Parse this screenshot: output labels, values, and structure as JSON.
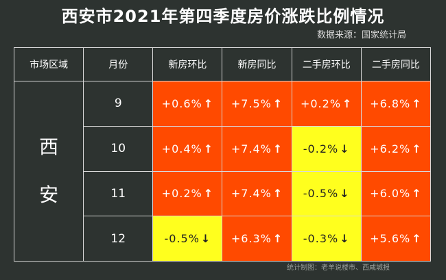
{
  "header": {
    "title": "西安市2021年第四季度房价涨跌比例情况",
    "source": "数据来源：国家统计局",
    "credit": "统计制图：老羊说楼市、西咸城报"
  },
  "table": {
    "columns": [
      "市场区域",
      "月份",
      "新房环比",
      "新房同比",
      "二手房环比",
      "二手房同比"
    ],
    "region_chars": [
      "西",
      "安"
    ],
    "rows": [
      {
        "month": "9",
        "cells": [
          {
            "text": "+0.6%",
            "arrow": "↑"
          },
          {
            "text": "+7.5%",
            "arrow": "↑"
          },
          {
            "text": "+0.2%",
            "arrow": "↑"
          },
          {
            "text": "+6.8%",
            "arrow": "↑"
          }
        ]
      },
      {
        "month": "10",
        "cells": [
          {
            "text": "+0.4%",
            "arrow": "↑"
          },
          {
            "text": "+7.4%",
            "arrow": "↑"
          },
          {
            "text": "-0.2%",
            "arrow": "↓"
          },
          {
            "text": "+6.2%",
            "arrow": "↑"
          }
        ]
      },
      {
        "month": "11",
        "cells": [
          {
            "text": "+0.2%",
            "arrow": "↑"
          },
          {
            "text": "+7.4%",
            "arrow": "↑"
          },
          {
            "text": "-0.5%",
            "arrow": "↓"
          },
          {
            "text": "+6.0%",
            "arrow": "↑"
          }
        ]
      },
      {
        "month": "12",
        "cells": [
          {
            "text": "-0.5%",
            "arrow": "↓"
          },
          {
            "text": "+6.3%",
            "arrow": "↑"
          },
          {
            "text": "-0.3%",
            "arrow": "↓"
          },
          {
            "text": "+5.6%",
            "arrow": "↑"
          }
        ]
      }
    ]
  },
  "colors": {
    "increase": "#ff4a00",
    "decrease": "#ffff1e",
    "background": "#2d3330"
  },
  "chart_data": {
    "type": "table",
    "title": "西安市2021年第四季度房价涨跌比例情况",
    "columns": [
      "市场区域",
      "月份",
      "新房环比",
      "新房同比",
      "二手房环比",
      "二手房同比"
    ],
    "region": "西安",
    "categories": [
      "9",
      "10",
      "11",
      "12"
    ],
    "series": [
      {
        "name": "新房环比",
        "values": [
          0.6,
          0.4,
          0.2,
          -0.5
        ]
      },
      {
        "name": "新房同比",
        "values": [
          7.5,
          7.4,
          7.4,
          6.3
        ]
      },
      {
        "name": "二手房环比",
        "values": [
          0.2,
          -0.2,
          -0.5,
          -0.3
        ]
      },
      {
        "name": "二手房同比",
        "values": [
          6.8,
          6.2,
          6.0,
          5.6
        ]
      }
    ]
  }
}
